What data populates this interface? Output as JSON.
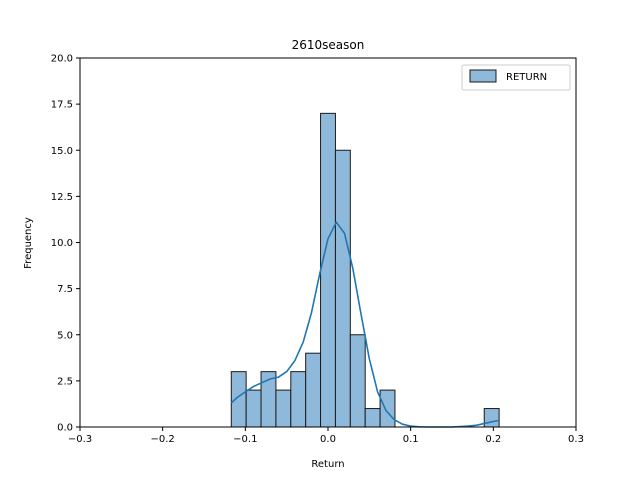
{
  "chart_data": {
    "type": "bar",
    "title": "2610season",
    "xlabel": "Return",
    "ylabel": "Frequency",
    "xlim": [
      -0.3,
      0.3
    ],
    "ylim": [
      0,
      20
    ],
    "xticks": [
      -0.3,
      -0.2,
      -0.1,
      0.0,
      0.1,
      0.2,
      0.3
    ],
    "xtick_labels": [
      "−0.3",
      "−0.2",
      "−0.1",
      "0.0",
      "0.1",
      "0.2",
      "0.3"
    ],
    "yticks": [
      0,
      2.5,
      5,
      7.5,
      10,
      12.5,
      15,
      17.5,
      20
    ],
    "ytick_labels": [
      "0.0",
      "2.5",
      "5.0",
      "7.5",
      "10.0",
      "12.5",
      "15.0",
      "17.5",
      "20.0"
    ],
    "grid": false,
    "legend": {
      "placement": "top-right",
      "entries": [
        "RETURN"
      ]
    },
    "colors": {
      "bar_fill": "#8fb9da",
      "bar_edge": "#1a1a1a",
      "kde_line": "#1f77b4"
    },
    "series": [
      {
        "name": "RETURN",
        "bin_edges": [
          -0.117,
          -0.099,
          -0.081,
          -0.063,
          -0.045,
          -0.027,
          -0.009,
          0.009,
          0.027,
          0.045,
          0.063,
          0.081,
          0.099,
          0.117,
          0.135,
          0.153,
          0.171,
          0.189,
          0.207
        ],
        "counts": [
          3,
          2,
          3,
          2,
          3,
          4,
          17,
          15,
          5,
          1,
          2,
          0,
          0,
          0,
          0,
          0,
          0,
          1
        ],
        "kde": {
          "x": [
            -0.117,
            -0.11,
            -0.1,
            -0.09,
            -0.08,
            -0.07,
            -0.06,
            -0.05,
            -0.04,
            -0.03,
            -0.02,
            -0.01,
            0.0,
            0.01,
            0.02,
            0.03,
            0.04,
            0.05,
            0.06,
            0.07,
            0.08,
            0.09,
            0.1,
            0.11,
            0.12,
            0.13,
            0.14,
            0.15,
            0.16,
            0.17,
            0.18,
            0.19,
            0.2,
            0.207
          ],
          "y": [
            1.3,
            1.6,
            1.9,
            2.2,
            2.4,
            2.6,
            2.7,
            3.0,
            3.6,
            4.6,
            6.2,
            8.3,
            10.2,
            11.1,
            10.5,
            8.6,
            6.1,
            3.7,
            1.9,
            0.9,
            0.4,
            0.15,
            0.05,
            0.01,
            0.0,
            0.0,
            0.0,
            0.0,
            0.02,
            0.05,
            0.1,
            0.2,
            0.3,
            0.35
          ]
        }
      }
    ]
  }
}
